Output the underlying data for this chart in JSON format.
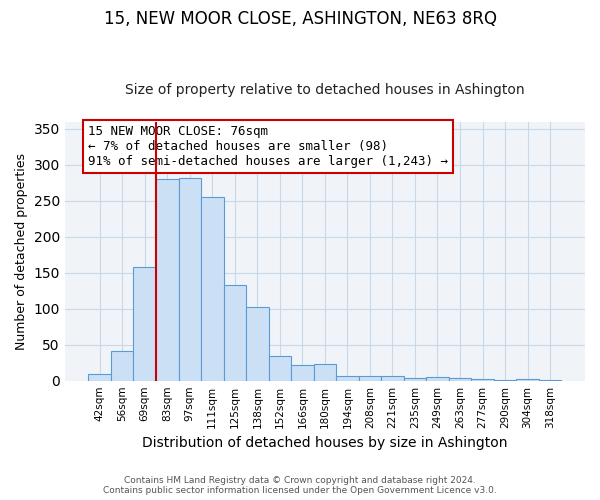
{
  "title": "15, NEW MOOR CLOSE, ASHINGTON, NE63 8RQ",
  "subtitle": "Size of property relative to detached houses in Ashington",
  "xlabel": "Distribution of detached houses by size in Ashington",
  "ylabel": "Number of detached properties",
  "bar_labels": [
    "42sqm",
    "56sqm",
    "69sqm",
    "83sqm",
    "97sqm",
    "111sqm",
    "125sqm",
    "138sqm",
    "152sqm",
    "166sqm",
    "180sqm",
    "194sqm",
    "208sqm",
    "221sqm",
    "235sqm",
    "249sqm",
    "263sqm",
    "277sqm",
    "290sqm",
    "304sqm",
    "318sqm"
  ],
  "bar_values": [
    9,
    41,
    158,
    280,
    282,
    255,
    133,
    103,
    35,
    22,
    23,
    7,
    7,
    6,
    4,
    5,
    4,
    2,
    1,
    2,
    1
  ],
  "bar_color": "#cce0f5",
  "bar_edge_color": "#5b9bd5",
  "vline_x_idx": 2,
  "vline_color": "#cc0000",
  "annotation_line1": "15 NEW MOOR CLOSE: 76sqm",
  "annotation_line2": "← 7% of detached houses are smaller (98)",
  "annotation_line3": "91% of semi-detached houses are larger (1,243) →",
  "ylim": [
    0,
    360
  ],
  "yticks": [
    0,
    50,
    100,
    150,
    200,
    250,
    300,
    350
  ],
  "footer1": "Contains HM Land Registry data © Crown copyright and database right 2024.",
  "footer2": "Contains public sector information licensed under the Open Government Licence v3.0.",
  "title_fontsize": 12,
  "subtitle_fontsize": 10,
  "xlabel_fontsize": 10,
  "ylabel_fontsize": 9,
  "annotation_fontsize": 9,
  "tick_fontsize": 7.5,
  "grid_color": "#c8d8e8",
  "bg_color": "#f0f4f8"
}
